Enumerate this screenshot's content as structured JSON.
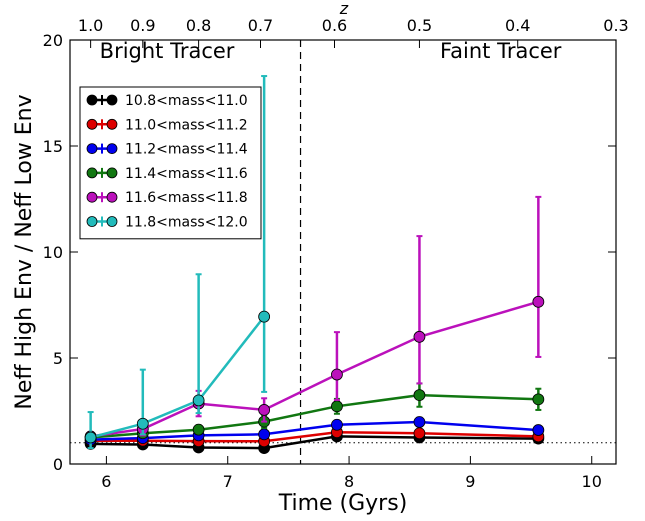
{
  "chart_data": {
    "type": "line",
    "xlabel": "Time (Gyrs)",
    "ylabel": "Neff High Env / Neff Low Env",
    "top_axis_label": "z",
    "xlim": [
      5.7,
      10.2
    ],
    "ylim": [
      0,
      20
    ],
    "x_ticks": [
      6,
      7,
      8,
      9,
      10
    ],
    "y_ticks": [
      0,
      5,
      10,
      15,
      20
    ],
    "top_ticks": [
      {
        "x": 5.87,
        "label": "1.0"
      },
      {
        "x": 6.3,
        "label": "0.9"
      },
      {
        "x": 6.76,
        "label": "0.8"
      },
      {
        "x": 7.27,
        "label": "0.7"
      },
      {
        "x": 7.88,
        "label": "0.6"
      },
      {
        "x": 8.58,
        "label": "0.5"
      },
      {
        "x": 9.39,
        "label": "0.4"
      },
      {
        "x": 10.2,
        "label": "0.3"
      }
    ],
    "annotations": [
      {
        "text": "Bright Tracer",
        "x": 6.5,
        "y": 19.15
      },
      {
        "text": "Faint Tracer",
        "x": 9.25,
        "y": 19.15
      }
    ],
    "divider_x": 7.6,
    "reference_y": 1.0,
    "grid": false,
    "legend_position": "upper-left",
    "series": [
      {
        "name": "10.8<mass<11.0",
        "color": "#000000",
        "x": [
          5.87,
          6.3,
          6.76,
          7.3,
          7.9,
          8.58,
          9.56
        ],
        "y": [
          0.95,
          0.92,
          0.78,
          0.75,
          1.3,
          1.25,
          1.2
        ],
        "err_low": [
          0.2,
          0.15,
          0.12,
          0.1,
          0.15,
          0.15,
          0.15
        ],
        "err_high": [
          0.2,
          0.15,
          0.12,
          0.1,
          0.15,
          0.15,
          0.15
        ]
      },
      {
        "name": "11.0<mass<11.2",
        "color": "#dd0000",
        "x": [
          5.87,
          6.3,
          6.76,
          7.3,
          7.9,
          8.58,
          9.56
        ],
        "y": [
          1.1,
          1.1,
          1.08,
          1.07,
          1.5,
          1.45,
          1.3
        ],
        "err_low": [
          0.15,
          0.15,
          0.15,
          0.12,
          0.15,
          0.15,
          0.15
        ],
        "err_high": [
          0.15,
          0.15,
          0.15,
          0.12,
          0.15,
          0.15,
          0.15
        ]
      },
      {
        "name": "11.2<mass<11.4",
        "color": "#0000ee",
        "x": [
          5.87,
          6.3,
          6.76,
          7.3,
          7.9,
          8.58,
          9.56
        ],
        "y": [
          1.15,
          1.22,
          1.35,
          1.4,
          1.85,
          1.98,
          1.6
        ],
        "err_low": [
          0.15,
          0.15,
          0.15,
          0.15,
          0.2,
          0.2,
          0.15
        ],
        "err_high": [
          0.15,
          0.15,
          0.15,
          0.15,
          0.2,
          0.2,
          0.15
        ]
      },
      {
        "name": "11.4<mass<11.6",
        "color": "#117711",
        "x": [
          5.87,
          6.3,
          6.76,
          7.3,
          7.9,
          8.58,
          9.56
        ],
        "y": [
          1.25,
          1.45,
          1.62,
          2.0,
          2.72,
          3.25,
          3.05
        ],
        "err_low": [
          0.15,
          0.2,
          0.2,
          0.3,
          0.35,
          0.55,
          0.5
        ],
        "err_high": [
          0.15,
          0.2,
          0.2,
          0.3,
          0.35,
          0.55,
          0.5
        ]
      },
      {
        "name": "11.6<mass<11.8",
        "color": "#bb11bb",
        "x": [
          5.87,
          6.3,
          6.76,
          7.3,
          7.9,
          8.58,
          9.56
        ],
        "y": [
          1.3,
          1.65,
          2.85,
          2.55,
          4.22,
          6.0,
          7.65
        ],
        "err_low": [
          0.2,
          0.3,
          0.6,
          0.55,
          1.2,
          2.2,
          2.6
        ],
        "err_high": [
          0.2,
          0.3,
          0.6,
          0.55,
          2.0,
          4.75,
          4.95
        ]
      },
      {
        "name": "11.8<mass<12.0",
        "color": "#22bbbb",
        "x": [
          5.87,
          6.3,
          6.76,
          7.3
        ],
        "y": [
          1.25,
          1.9,
          3.0,
          6.95
        ],
        "err_low": [
          0.5,
          0.5,
          0.6,
          3.55
        ],
        "err_high": [
          1.2,
          2.55,
          5.95,
          11.35
        ]
      }
    ]
  }
}
